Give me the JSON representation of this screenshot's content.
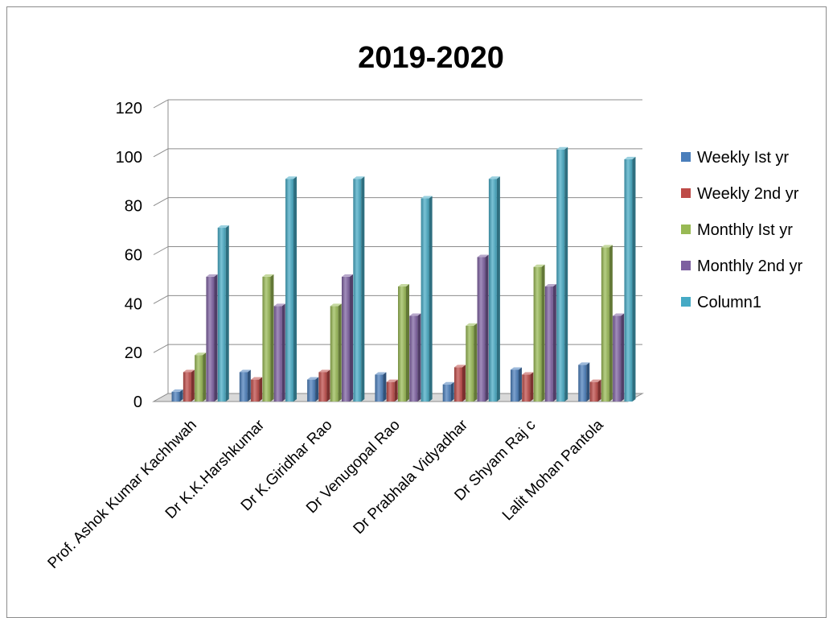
{
  "chart_data": {
    "type": "bar",
    "title": "2019-2020",
    "xlabel": "",
    "ylabel": "",
    "ylim": [
      0,
      120
    ],
    "yticks": [
      0,
      20,
      40,
      60,
      80,
      100,
      120
    ],
    "grid": true,
    "three_d": true,
    "legend_position": "right",
    "categories": [
      "Prof. Ashok Kumar Kachhwah",
      "Dr K.K.Harshkumar",
      "Dr K.Giridhar Rao",
      "Dr Venugopal Rao",
      "Dr Prabhala Vidyadhar",
      "Dr Shyam Raj c",
      "Lalit Mohan Pantola"
    ],
    "series": [
      {
        "name": "Weekly Ist yr",
        "color": "#4a7ebb",
        "values": [
          4,
          12,
          9,
          11,
          7,
          13,
          15
        ]
      },
      {
        "name": "Weekly 2nd yr",
        "color": "#be4b48",
        "values": [
          12,
          9,
          12,
          8,
          14,
          11,
          8
        ]
      },
      {
        "name": "Monthly Ist yr",
        "color": "#98b954",
        "values": [
          19,
          51,
          39,
          47,
          31,
          55,
          63
        ]
      },
      {
        "name": "Monthly 2nd yr",
        "color": "#7d60a0",
        "values": [
          51,
          39,
          51,
          35,
          59,
          47,
          35
        ]
      },
      {
        "name": "Column1",
        "color": "#46aac5",
        "values": [
          71,
          91,
          91,
          83,
          91,
          103,
          99
        ]
      }
    ]
  }
}
